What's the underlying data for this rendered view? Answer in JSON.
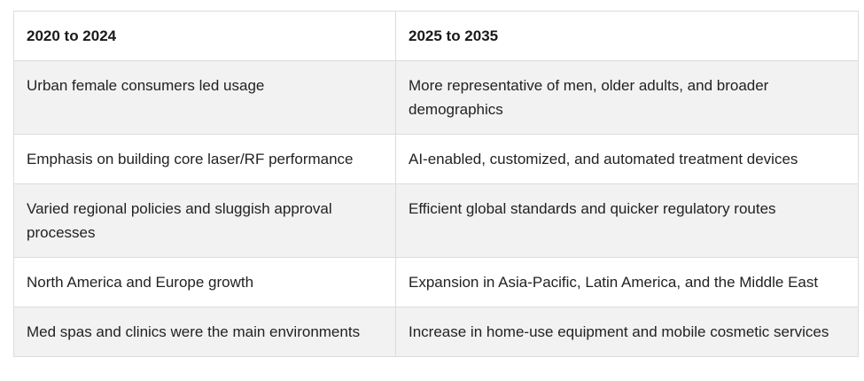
{
  "table": {
    "headers": [
      "2020 to 2024",
      "2025 to 2035"
    ],
    "rows": [
      [
        "Urban female consumers led usage",
        "More representative of men, older adults, and broader demographics"
      ],
      [
        "Emphasis on building core laser/RF performance",
        "AI-enabled, customized, and automated treatment devices"
      ],
      [
        "Varied regional policies and sluggish approval processes",
        "Efficient global standards and quicker regulatory routes"
      ],
      [
        "North America and Europe growth",
        "Expansion in Asia-Pacific, Latin America, and the Middle East"
      ],
      [
        "Med spas and clinics were the main environments",
        "Increase in home-use equipment and mobile cosmetic services"
      ]
    ]
  }
}
